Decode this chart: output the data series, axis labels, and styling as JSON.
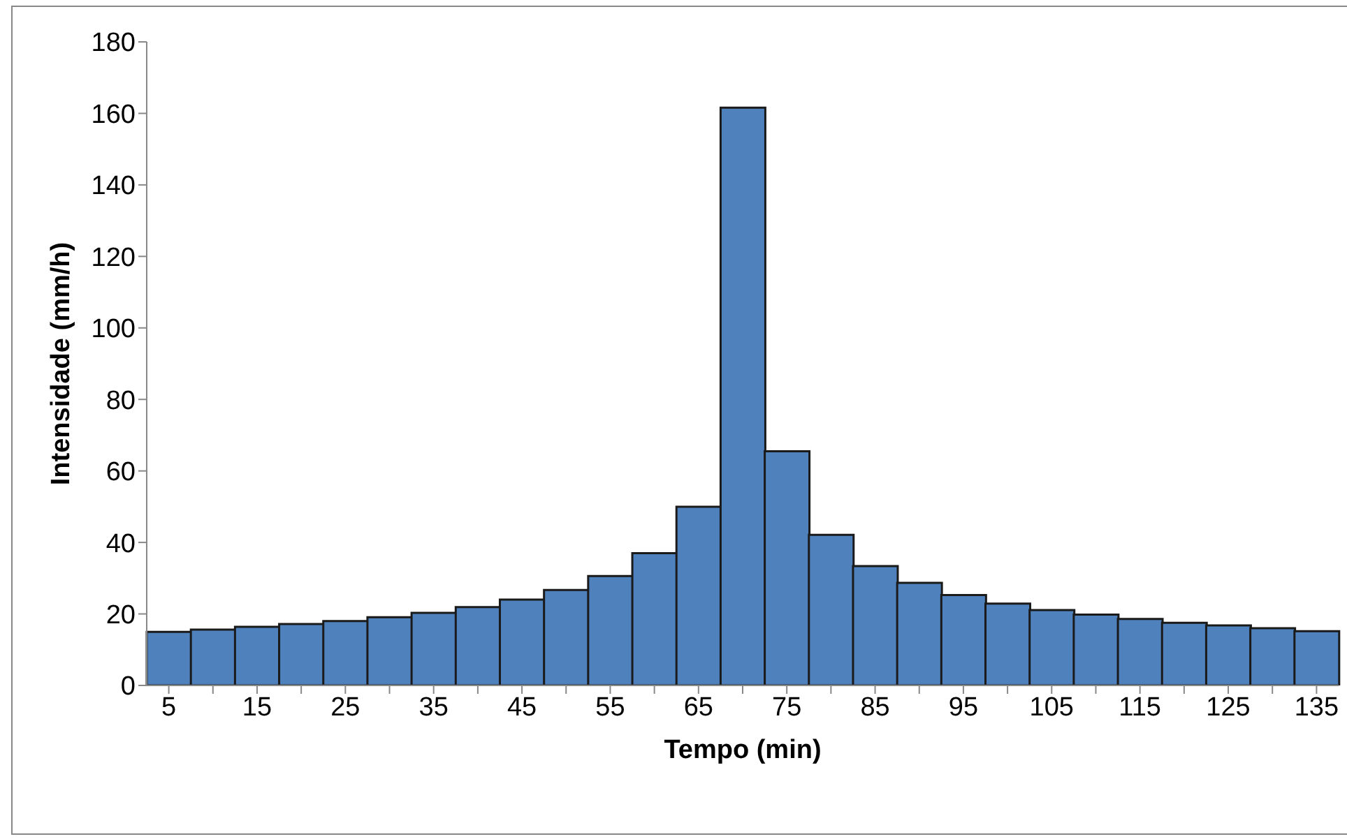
{
  "chart_data": {
    "type": "bar",
    "xlabel": "Tempo (min)",
    "ylabel": "Intensidade (mm/h)",
    "categories": [
      "5",
      null,
      "15",
      null,
      "25",
      null,
      "35",
      null,
      "45",
      null,
      "55",
      null,
      "65",
      null,
      "75",
      null,
      "85",
      null,
      "95",
      null,
      "105",
      null,
      "115",
      null,
      "125",
      null,
      "135"
    ],
    "values": [
      15.0,
      15.6,
      16.4,
      17.2,
      18.0,
      19.1,
      20.3,
      21.9,
      24.0,
      26.7,
      30.6,
      37.0,
      50.0,
      161.6,
      65.5,
      42.1,
      33.4,
      28.7,
      25.3,
      22.9,
      21.1,
      19.8,
      18.6,
      17.5,
      16.8,
      16.0,
      15.2
    ],
    "color": "#4f81bd",
    "ylim": [
      0,
      180
    ],
    "yticks": [
      0,
      20,
      40,
      60,
      80,
      100,
      120,
      140,
      160,
      180
    ],
    "grid": false,
    "legend": false
  }
}
